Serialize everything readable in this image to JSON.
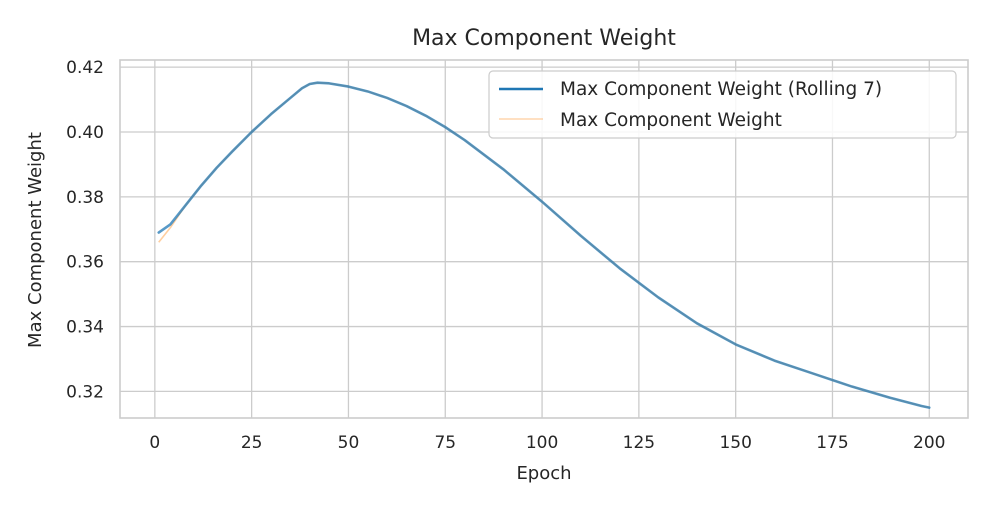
{
  "chart_data": {
    "type": "line",
    "title": "Max Component Weight",
    "xlabel": "Epoch",
    "ylabel": "Max Component Weight",
    "xlim": [
      -9,
      210
    ],
    "ylim": [
      0.3118,
      0.4222
    ],
    "xticks": [
      0,
      25,
      50,
      75,
      100,
      125,
      150,
      175,
      200
    ],
    "yticks": [
      0.32,
      0.34,
      0.36,
      0.38,
      0.4,
      0.42
    ],
    "ytick_labels": [
      "0.32",
      "0.34",
      "0.36",
      "0.38",
      "0.40",
      "0.42"
    ],
    "grid": true,
    "legend_position": "top-right",
    "series": [
      {
        "name": "Max Component Weight (Rolling 7)",
        "color": "#1f77b4",
        "x": [
          1,
          4,
          8,
          12,
          16,
          20,
          25,
          30,
          35,
          38,
          40,
          42,
          45,
          50,
          55,
          60,
          65,
          70,
          75,
          80,
          85,
          90,
          95,
          100,
          110,
          120,
          125,
          130,
          140,
          150,
          160,
          170,
          180,
          190,
          198,
          200
        ],
        "values": [
          0.369,
          0.3715,
          0.3775,
          0.3835,
          0.389,
          0.394,
          0.4,
          0.4055,
          0.4105,
          0.4135,
          0.4148,
          0.4152,
          0.415,
          0.414,
          0.4125,
          0.4105,
          0.408,
          0.405,
          0.4015,
          0.3975,
          0.393,
          0.3885,
          0.3835,
          0.3785,
          0.368,
          0.358,
          0.3535,
          0.349,
          0.341,
          0.3345,
          0.3295,
          0.3255,
          0.3215,
          0.318,
          0.3155,
          0.315
        ]
      },
      {
        "name": "Max Component Weight",
        "color": "#ffbb78",
        "x": [
          1,
          4,
          8,
          12,
          16,
          20,
          25,
          30,
          35,
          38,
          40,
          42,
          45,
          50,
          55,
          60,
          65,
          70,
          75,
          80,
          85,
          90,
          95,
          100,
          110,
          120,
          125,
          130,
          140,
          150,
          160,
          170,
          180,
          190,
          198,
          200
        ],
        "values": [
          0.366,
          0.3705,
          0.3775,
          0.3835,
          0.389,
          0.394,
          0.4,
          0.4055,
          0.4105,
          0.4135,
          0.4148,
          0.4152,
          0.415,
          0.414,
          0.4125,
          0.4105,
          0.408,
          0.405,
          0.4015,
          0.3975,
          0.393,
          0.3885,
          0.3835,
          0.3785,
          0.368,
          0.358,
          0.3535,
          0.349,
          0.341,
          0.3345,
          0.3295,
          0.3255,
          0.3215,
          0.318,
          0.3155,
          0.315
        ]
      }
    ]
  }
}
